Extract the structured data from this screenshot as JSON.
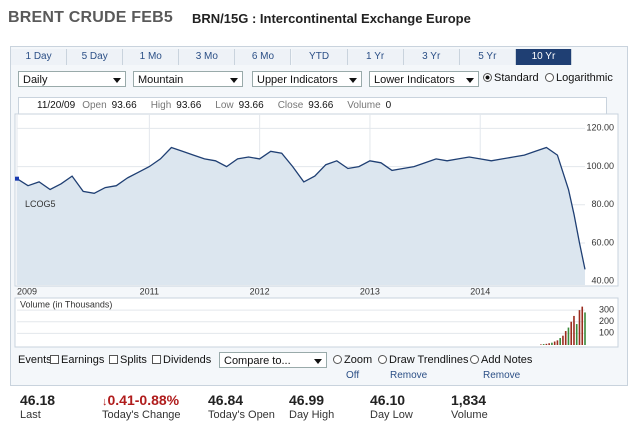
{
  "header": {
    "title": "BRENT CRUDE FEB5",
    "subtitle": "BRN/15G : Intercontinental Exchange Europe"
  },
  "tabs": [
    "1 Day",
    "5 Day",
    "1 Mo",
    "3 Mo",
    "6 Mo",
    "YTD",
    "1 Yr",
    "3 Yr",
    "5 Yr",
    "10 Yr"
  ],
  "active_tab": 9,
  "controls": {
    "dropdowns": [
      "Daily",
      "Mountain",
      "Upper Indicators",
      "Lower Indicators"
    ],
    "scale_options": [
      "Standard",
      "Logarithmic"
    ],
    "selected_scale": 0
  },
  "info_bar": {
    "date": "11/20/09",
    "fields": [
      {
        "label": "Open",
        "value": "93.66"
      },
      {
        "label": "High",
        "value": "93.66"
      },
      {
        "label": "Low",
        "value": "93.66"
      },
      {
        "label": "Close",
        "value": "93.66"
      },
      {
        "label": "Volume",
        "value": "0"
      }
    ]
  },
  "chart_data": [
    {
      "type": "line",
      "x": [
        2009.8,
        2009.9,
        2010.0,
        2010.1,
        2010.2,
        2010.3,
        2010.4,
        2010.5,
        2010.6,
        2010.7,
        2010.8,
        2010.9,
        2011.0,
        2011.1,
        2011.2,
        2011.3,
        2011.4,
        2011.5,
        2011.6,
        2011.7,
        2011.8,
        2011.9,
        2012.0,
        2012.1,
        2012.2,
        2012.3,
        2012.4,
        2012.5,
        2012.6,
        2012.7,
        2012.8,
        2012.9,
        2013.0,
        2013.1,
        2013.2,
        2013.3,
        2013.4,
        2013.5,
        2013.6,
        2013.7,
        2013.8,
        2013.9,
        2014.0,
        2014.1,
        2014.2,
        2014.3,
        2014.4,
        2014.5,
        2014.6,
        2014.7,
        2014.8,
        2014.85,
        2014.9,
        2014.95
      ],
      "series": [
        {
          "name": "LCOG5",
          "color": "#1f3f73",
          "fill": "#dce6ef",
          "values": [
            93.66,
            90,
            92,
            88,
            91,
            95,
            87,
            86,
            89,
            90,
            94,
            97,
            100,
            104,
            110,
            108,
            106,
            104,
            103,
            100,
            104,
            105,
            104,
            108,
            107,
            100,
            92,
            95,
            101,
            103,
            99,
            100,
            103,
            102,
            98,
            99,
            100,
            102,
            104,
            103,
            104,
            105,
            104,
            103,
            104,
            105,
            106,
            108,
            110,
            106,
            88,
            75,
            60,
            46.18
          ]
        }
      ],
      "xlim": [
        2009.8,
        2014.95
      ],
      "xticks": [
        {
          "value": 2009.8,
          "label": "2009"
        },
        2011,
        2012,
        2013,
        2014
      ],
      "ylim": [
        38,
        127
      ],
      "yticks": [
        {
          "value": 40,
          "label": "40.00"
        },
        {
          "value": 60,
          "label": "60.00"
        },
        {
          "value": 80,
          "label": "80.00"
        },
        {
          "value": 100,
          "label": "100.00"
        },
        {
          "value": 120,
          "label": "120.00"
        }
      ],
      "grid": true
    },
    {
      "type": "bar",
      "title": "Volume (in Thousands)",
      "x": [
        2014.55,
        2014.575,
        2014.6,
        2014.625,
        2014.65,
        2014.675,
        2014.7,
        2014.725,
        2014.75,
        2014.775,
        2014.8,
        2014.825,
        2014.85,
        2014.875,
        2014.9,
        2014.925,
        2014.95
      ],
      "values": [
        5,
        8,
        10,
        15,
        20,
        30,
        40,
        60,
        80,
        120,
        150,
        200,
        250,
        180,
        300,
        330,
        280
      ],
      "color": "#9b2b1e",
      "xlim": [
        2009.8,
        2014.95
      ],
      "ylim": [
        0,
        387
      ],
      "yticks": [
        100,
        200,
        300
      ],
      "grid": true
    }
  ],
  "events": {
    "label": "Events:",
    "checkboxes": [
      "Earnings",
      "Splits",
      "Dividends"
    ],
    "compare": "Compare to...",
    "tools": [
      {
        "label": "Zoom",
        "action": "Off"
      },
      {
        "label": "Draw Trendlines",
        "action": "Remove"
      },
      {
        "label": "Add Notes",
        "action": "Remove"
      }
    ]
  },
  "stats": [
    {
      "value": "46.18",
      "label": "Last"
    },
    {
      "value": "0.41-0.88%",
      "label": "Today's Change",
      "direction": "down"
    },
    {
      "value": "46.84",
      "label": "Today's Open"
    },
    {
      "value": "46.99",
      "label": "Day High"
    },
    {
      "value": "46.10",
      "label": "Day Low"
    },
    {
      "value": "1,834",
      "label": "Volume"
    }
  ]
}
